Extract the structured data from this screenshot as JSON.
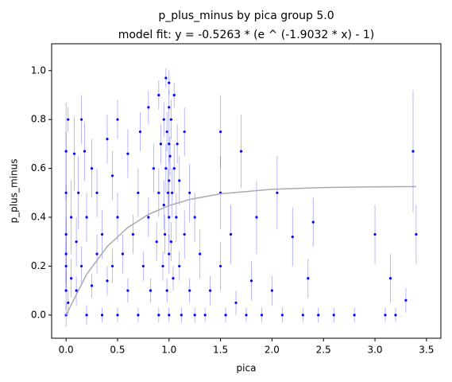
{
  "chart_data": {
    "type": "scatter",
    "title": "p_plus_minus by pica group 5.0",
    "subtitle": "model fit: y = -0.5263 * (e ^ (-1.9032 * x) - 1)",
    "x_label": "pica",
    "y_label": "p_plus_minus",
    "xlim": [
      -0.14,
      3.64
    ],
    "ylim": [
      -0.095,
      1.11
    ],
    "xticks": [
      {
        "value": 0,
        "label": "0.0"
      },
      0.5,
      {
        "value": 1,
        "label": "1.0"
      },
      1.5,
      {
        "value": 2,
        "label": "2.0"
      },
      2.5,
      {
        "value": 3,
        "label": "3.0"
      },
      3.5
    ],
    "yticks": [
      {
        "value": 0,
        "label": "0.0"
      },
      0.2,
      0.4,
      0.6,
      0.8,
      {
        "value": 1,
        "label": "1.0"
      }
    ],
    "grid": false,
    "points": {
      "color": "#0000ff",
      "x": [
        0,
        0,
        0,
        0,
        0,
        0,
        0,
        0.02,
        0.02,
        0.05,
        0.05,
        0.08,
        0.1,
        0.1,
        0.12,
        0.15,
        0.15,
        0.18,
        0.2,
        0.2,
        0.25,
        0.25,
        0.3,
        0.3,
        0.35,
        0.35,
        0.4,
        0.4,
        0.45,
        0.45,
        0.5,
        0.5,
        0.5,
        0.55,
        0.6,
        0.6,
        0.65,
        0.7,
        0.7,
        0.72,
        0.75,
        0.8,
        0.8,
        0.82,
        0.85,
        0.88,
        0.9,
        0.9,
        0.9,
        0.92,
        0.94,
        0.95,
        0.95,
        0.96,
        0.97,
        0.97,
        0.98,
        0.98,
        0.99,
        1.0,
        1.0,
        1.0,
        1.0,
        1.0,
        1.0,
        1.0,
        1.01,
        1.02,
        1.02,
        1.03,
        1.04,
        1.05,
        1.05,
        1.07,
        1.08,
        1.1,
        1.1,
        1.12,
        1.15,
        1.15,
        1.2,
        1.2,
        1.25,
        1.25,
        1.3,
        1.35,
        1.4,
        1.5,
        1.5,
        1.5,
        1.55,
        1.6,
        1.65,
        1.7,
        1.75,
        1.8,
        1.85,
        1.9,
        2.0,
        2.05,
        2.1,
        2.2,
        2.3,
        2.35,
        2.4,
        2.45,
        2.6,
        2.8,
        3.0,
        3.1,
        3.15,
        3.2,
        3.3,
        3.37,
        3.4
      ],
      "values": [
        0,
        0.1,
        0.2,
        0.25,
        0.33,
        0.5,
        0.67,
        0.8,
        0.05,
        0.15,
        0.4,
        0.66,
        0.1,
        0.3,
        0.5,
        0.2,
        0.8,
        0.67,
        0,
        0.4,
        0.12,
        0.6,
        0.25,
        0.5,
        0,
        0.33,
        0.14,
        0.72,
        0.2,
        0.57,
        0,
        0.4,
        0.8,
        0.25,
        0.1,
        0.66,
        0.33,
        0,
        0.5,
        0.75,
        0.2,
        0.4,
        0.85,
        0.1,
        0.6,
        0.3,
        0,
        0.5,
        0.9,
        0.7,
        0.2,
        0.45,
        0.8,
        0.33,
        0.6,
        0.97,
        0.1,
        0.75,
        0.5,
        0,
        0.25,
        0.4,
        0.55,
        0.7,
        0.85,
        0.95,
        0.65,
        0.3,
        0.8,
        0.5,
        0.15,
        0.6,
        0.9,
        0.4,
        0.7,
        0.2,
        0.55,
        0,
        0.33,
        0.75,
        0.5,
        0.1,
        0,
        0.4,
        0.25,
        0,
        0.1,
        0.5,
        0.75,
        0.2,
        0,
        0.33,
        0.05,
        0.67,
        0,
        0.14,
        0.4,
        0,
        0.1,
        0.5,
        0,
        0.32,
        0,
        0.15,
        0.38,
        0,
        0,
        0,
        0.33,
        0,
        0.15,
        0,
        0.06,
        0.67,
        0.33
      ],
      "errors": [
        0.05,
        0.08,
        0.1,
        0.15,
        0.2,
        0.25,
        0.2,
        0.05,
        0.05,
        0.08,
        0.15,
        0.15,
        0.06,
        0.1,
        0.15,
        0.08,
        0.1,
        0.12,
        0.04,
        0.1,
        0.05,
        0.12,
        0.08,
        0.1,
        0.03,
        0.1,
        0.06,
        0.1,
        0.07,
        0.1,
        0.03,
        0.1,
        0.08,
        0.08,
        0.05,
        0.1,
        0.08,
        0.03,
        0.1,
        0.08,
        0.06,
        0.08,
        0.07,
        0.05,
        0.1,
        0.08,
        0.03,
        0.1,
        0.06,
        0.08,
        0.06,
        0.1,
        0.07,
        0.08,
        0.1,
        0.04,
        0.05,
        0.08,
        0.1,
        0.03,
        0.08,
        0.1,
        0.1,
        0.08,
        0.07,
        0.05,
        0.08,
        0.08,
        0.08,
        0.1,
        0.05,
        0.1,
        0.05,
        0.1,
        0.08,
        0.06,
        0.1,
        0.03,
        0.1,
        0.1,
        0.12,
        0.05,
        0.03,
        0.1,
        0.1,
        0.03,
        0.06,
        0.15,
        0.15,
        0.1,
        0.03,
        0.12,
        0.05,
        0.15,
        0.03,
        0.08,
        0.15,
        0.03,
        0.06,
        0.15,
        0.03,
        0.12,
        0.03,
        0.08,
        0.1,
        0.03,
        0.03,
        0.03,
        0.12,
        0.03,
        0.1,
        0.03,
        0.05,
        0.25,
        0.12
      ]
    },
    "fit": {
      "color": "#aaaaaa",
      "x": [
        0,
        0.2,
        0.4,
        0.6,
        0.8,
        1.0,
        1.2,
        1.5,
        2.0,
        2.5,
        3.0,
        3.4
      ],
      "values": [
        0,
        0.1666,
        0.2805,
        0.3583,
        0.4115,
        0.4478,
        0.4727,
        0.496,
        0.5146,
        0.5218,
        0.5246,
        0.5255
      ]
    }
  }
}
